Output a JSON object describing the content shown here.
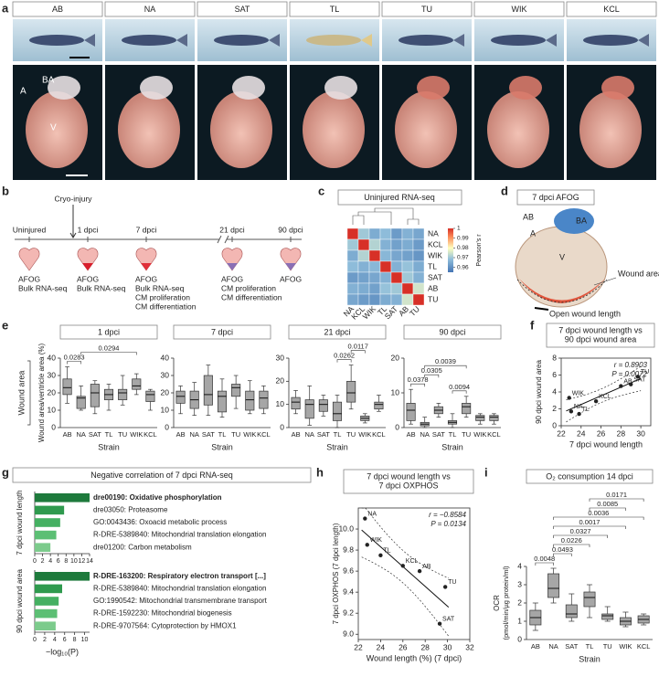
{
  "panel_labels": [
    "a",
    "b",
    "c",
    "d",
    "e",
    "f",
    "g",
    "h",
    "i"
  ],
  "panel_a": {
    "strains": [
      "AB",
      "NA",
      "SAT",
      "TL",
      "TU",
      "WIK",
      "KCL"
    ],
    "heart_labels": [
      "A",
      "BA",
      "V"
    ]
  },
  "panel_b": {
    "injury": "Cryo-injury",
    "stages": [
      {
        "label": "Uninjured",
        "assays": [
          "AFOG",
          "Bulk RNA-seq"
        ]
      },
      {
        "label": "1 dpci",
        "assays": [
          "AFOG",
          "Bulk RNA-seq"
        ]
      },
      {
        "label": "7 dpci",
        "assays": [
          "AFOG",
          "Bulk RNA-seq",
          "CM proliferation",
          "CM differentiation"
        ]
      },
      {
        "label": "21 dpci",
        "assays": [
          "AFOG",
          "CM proliferation",
          "CM differentiation"
        ]
      },
      {
        "label": "90 dpci",
        "assays": [
          "AFOG"
        ]
      }
    ]
  },
  "panel_d": {
    "title": "7 dpci AFOG",
    "labels": [
      "AB",
      "BA",
      "A",
      "V"
    ],
    "wound_area": "Wound area",
    "wound_length": "Open wound length"
  },
  "panel_e": {
    "group_label": "Wound area"
  },
  "panel_g": {
    "title": "Negative correlation of 7 dpci RNA-seq"
  },
  "chart_data": [
    {
      "type": "heatmap",
      "title": "Uninjured RNA-seq",
      "categories": [
        "NA",
        "KCL",
        "WIK",
        "TL",
        "SAT",
        "AB",
        "TU"
      ],
      "matrix": [
        [
          1,
          0.97,
          0.965,
          0.968,
          0.962,
          0.966,
          0.964
        ],
        [
          0.97,
          1,
          0.972,
          0.966,
          0.963,
          0.965,
          0.962
        ],
        [
          0.965,
          0.972,
          1,
          0.967,
          0.964,
          0.963,
          0.961
        ],
        [
          0.968,
          0.966,
          0.967,
          1,
          0.966,
          0.969,
          0.965
        ],
        [
          0.962,
          0.963,
          0.964,
          0.966,
          1,
          0.97,
          0.966
        ],
        [
          0.966,
          0.965,
          0.963,
          0.969,
          0.97,
          1,
          0.975
        ],
        [
          0.964,
          0.962,
          0.961,
          0.965,
          0.966,
          0.975,
          1
        ]
      ],
      "clim": [
        0.955,
        1
      ],
      "colorbar_ticks": [
        1,
        0.99,
        0.98,
        0.97,
        0.96
      ],
      "colorbar_label": "Pearson's r"
    },
    {
      "type": "box",
      "title": "1 dpci",
      "categories": [
        "AB",
        "NA",
        "SAT",
        "TL",
        "TU",
        "WIK",
        "KCL"
      ],
      "color": "#a6a6a6",
      "boxes": [
        [
          14,
          19,
          23,
          28,
          35
        ],
        [
          10,
          11,
          17,
          18,
          24
        ],
        [
          8,
          12,
          20,
          25,
          27
        ],
        [
          10,
          16,
          19,
          22,
          25
        ],
        [
          13,
          16,
          20,
          22,
          30
        ],
        [
          19,
          22,
          24,
          28,
          31
        ],
        [
          10,
          15,
          19,
          21,
          22
        ]
      ],
      "ylim": [
        0,
        40
      ],
      "yticks": [
        0,
        10,
        20,
        30,
        40
      ],
      "ylabel": "Wound area/ventricle area (%)",
      "xlabel": "Strain",
      "brackets": [
        {
          "between": [
            "AB",
            "NA"
          ],
          "label": 0.0283
        },
        {
          "between": [
            "NA",
            "WIK"
          ],
          "label": 0.0294
        }
      ]
    },
    {
      "type": "box",
      "title": "7 dpci",
      "categories": [
        "AB",
        "NA",
        "SAT",
        "TL",
        "TU",
        "WIK",
        "KCL"
      ],
      "color": "#a6a6a6",
      "boxes": [
        [
          8,
          14,
          18,
          21,
          24
        ],
        [
          7,
          11,
          16,
          21,
          26
        ],
        [
          7,
          13,
          19,
          30,
          36
        ],
        [
          6,
          9,
          18,
          21,
          28
        ],
        [
          11,
          18,
          23,
          25,
          30
        ],
        [
          8,
          10,
          16,
          21,
          27
        ],
        [
          8,
          11,
          17,
          21,
          24
        ]
      ],
      "ylim": [
        0,
        40
      ],
      "yticks": [
        0,
        10,
        20,
        30,
        40
      ],
      "xlabel": "Strain"
    },
    {
      "type": "box",
      "title": "21 dpci",
      "categories": [
        "AB",
        "NA",
        "SAT",
        "TL",
        "TU",
        "WIK",
        "KCL"
      ],
      "color": "#a6a6a6",
      "boxes": [
        [
          6,
          8,
          11,
          13,
          16
        ],
        [
          1,
          4,
          10,
          12,
          18
        ],
        [
          5,
          7,
          10,
          12,
          14
        ],
        [
          0,
          3,
          6,
          11,
          14
        ],
        [
          8,
          11,
          15,
          20,
          27
        ],
        [
          2,
          3,
          4,
          5,
          6
        ],
        [
          7,
          8,
          10,
          11,
          14
        ]
      ],
      "ylim": [
        0,
        30
      ],
      "yticks": [
        0,
        10,
        20,
        30
      ],
      "xlabel": "Strain",
      "brackets": [
        {
          "between": [
            "TL",
            "TU"
          ],
          "label": 0.0262
        },
        {
          "between": [
            "TU",
            "WIK"
          ],
          "label": 0.0117
        }
      ]
    },
    {
      "type": "box",
      "title": "90 dpci",
      "categories": [
        "AB",
        "NA",
        "SAT",
        "TL",
        "TU",
        "WIK",
        "KCL"
      ],
      "color": "#a6a6a6",
      "boxes": [
        [
          1,
          2,
          5,
          7,
          11
        ],
        [
          0,
          0.5,
          1,
          1.5,
          3
        ],
        [
          3,
          4,
          5,
          6,
          7
        ],
        [
          0,
          1,
          1.5,
          2,
          4
        ],
        [
          3,
          4,
          6,
          7,
          9
        ],
        [
          1,
          2,
          3,
          3.5,
          4
        ],
        [
          1,
          2,
          3,
          3.5,
          4
        ]
      ],
      "ylim": [
        0,
        20
      ],
      "yticks": [
        0,
        10,
        20
      ],
      "xlabel": "Strain",
      "brackets": [
        {
          "between": [
            "AB",
            "NA"
          ],
          "label": 0.0378
        },
        {
          "between": [
            "NA",
            "SAT"
          ],
          "label": 0.0305
        },
        {
          "between": [
            "TL",
            "TU"
          ],
          "label": 0.0094
        },
        {
          "between": [
            "NA",
            "TU"
          ],
          "label": 0.0039
        }
      ]
    },
    {
      "type": "scatter",
      "title": [
        "7 dpci wound length vs",
        "90 dpci wound area"
      ],
      "color": "#222222",
      "x": [
        23,
        23.8,
        22.8,
        25.5,
        28,
        29,
        29.7
      ],
      "values": [
        1.7,
        1.4,
        3.3,
        2.9,
        4.7,
        4.9,
        5.8
      ],
      "point_labels": [
        "NA",
        "TL",
        "WIK",
        "KCL",
        "AB",
        "SAT",
        "TU"
      ],
      "stats": [
        "r = 0.8903",
        "P = 0.0072"
      ],
      "xlim": [
        22,
        31
      ],
      "ylim": [
        0,
        8
      ],
      "xticks": [
        22,
        24,
        26,
        28,
        30
      ],
      "yticks": [
        0,
        2,
        4,
        6,
        8
      ],
      "xlabel": "7 dpci wound length",
      "ylabel": "90 dpci wound area"
    },
    {
      "type": "barh",
      "group_label": "7 dpci wound length",
      "labels": [
        "dre00190: Oxidative phosphorylation",
        "dre03050: Proteasome",
        "GO:0043436: Oxoacid metabolic process",
        "R-DRE-5389840: Mitochondrial translation elongation",
        "dre01200: Carbon metabolism"
      ],
      "values": [
        14,
        7.5,
        6.5,
        5.5,
        4
      ],
      "colors": [
        "#1e7a3c",
        "#2f9a4e",
        "#45b062",
        "#5cbf74",
        "#7ccb8c"
      ],
      "xlim": [
        0,
        14
      ],
      "xticks": [
        0,
        2,
        4,
        6,
        8,
        10,
        12,
        14
      ]
    },
    {
      "type": "barh",
      "group_label": "90 dpci wound area",
      "labels": [
        "R-DRE-163200: Respiratory electron transport [...]",
        "R-DRE-5389840: Mitochondrial translation elongation",
        "GO:1990542: Mitochondrial transmembrane transport",
        "R-DRE-1592230: Mitochondrial biogenesis",
        "R-DRE-9707564: Cytoprotection by HMOX1"
      ],
      "values": [
        11,
        5.5,
        4.8,
        4.5,
        4.2
      ],
      "colors": [
        "#1e7a3c",
        "#2f9a4e",
        "#45b062",
        "#5cbf74",
        "#7ccb8c"
      ],
      "xlim": [
        0,
        11
      ],
      "xticks": [
        0,
        2,
        4,
        6,
        8,
        10
      ],
      "xlabel": "−log₁₀(P)"
    },
    {
      "type": "scatter",
      "title": [
        "7 dpci wound length vs",
        "7 dpci OXPHOS"
      ],
      "color": "#222222",
      "x": [
        22.6,
        22.8,
        24,
        26,
        27.5,
        29.8,
        29.3
      ],
      "values": [
        10.1,
        9.85,
        9.75,
        9.65,
        9.6,
        9.45,
        9.1
      ],
      "point_labels": [
        "NA",
        "WIK",
        "TL",
        "KCL",
        "AB",
        "TU",
        "SAT"
      ],
      "stats": [
        "r = −0.8584",
        "P = 0.0134"
      ],
      "xlim": [
        22,
        32
      ],
      "ylim": [
        8.95,
        10.2
      ],
      "xticks": [
        22,
        24,
        26,
        28,
        30,
        32
      ],
      "yticks": [
        {
          "value": 9,
          "label": "9.0"
        },
        9.2,
        9.4,
        9.6,
        9.8,
        {
          "value": 10,
          "label": "10.0"
        }
      ],
      "xlabel": "Wound length (%) (7 dpci)",
      "ylabel": "7 dpci OXPHOS (7 dpci length)"
    },
    {
      "type": "box",
      "title": "O₂ consumption 14 dpci",
      "categories": [
        "AB",
        "NA",
        "SAT",
        "TL",
        "TU",
        "WIK",
        "KCL"
      ],
      "color": "#a6a6a6",
      "boxes": [
        [
          0.5,
          0.8,
          1.2,
          1.6,
          2
        ],
        [
          2,
          2.3,
          2.8,
          3.6,
          3.9
        ],
        [
          1,
          1.2,
          1.4,
          1.9,
          2.5
        ],
        [
          1.2,
          1.8,
          2.3,
          2.6,
          3
        ],
        [
          1,
          1.1,
          1.3,
          1.4,
          1.8
        ],
        [
          0.7,
          0.8,
          1,
          1.2,
          1.5
        ],
        [
          0.8,
          0.9,
          1.1,
          1.3,
          1.4
        ]
      ],
      "ylim": [
        0,
        4
      ],
      "yticks": [
        0,
        1,
        2,
        3,
        4
      ],
      "xlabel": "Strain",
      "ylabel": "OCR",
      "yunit": "(pmol/min/µg protein/ml)",
      "brackets": [
        {
          "between": [
            "AB",
            "NA"
          ],
          "label": 0.0048
        },
        {
          "between": [
            "NA",
            "SAT"
          ],
          "label": 0.0493
        },
        {
          "between": [
            "NA",
            "TL"
          ],
          "label": 0.0226
        },
        {
          "between": [
            "NA",
            "TU"
          ],
          "label": 0.0327
        },
        {
          "between": [
            "NA",
            "WIK"
          ],
          "label": 0.0017
        },
        {
          "between": [
            "NA",
            "KCL"
          ],
          "label": 0.0036
        },
        {
          "between": [
            "TL",
            "WIK"
          ],
          "label": 0.0085
        },
        {
          "between": [
            "TL",
            "KCL"
          ],
          "label": 0.0171
        }
      ]
    }
  ]
}
